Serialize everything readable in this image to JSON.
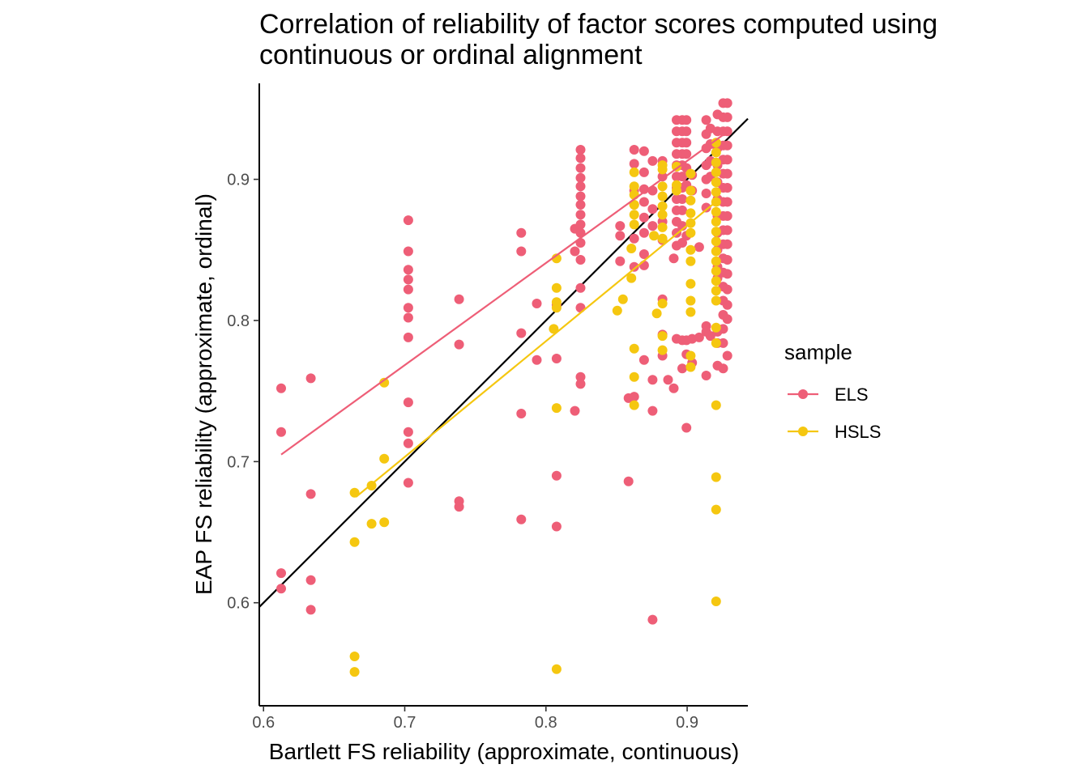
{
  "chart_data": {
    "type": "scatter",
    "title_lines": [
      "Correlation of reliability of factor scores computed using",
      "continuous or ordinal alignment"
    ],
    "xlabel": "Bartlett FS reliability (approximate, continuous)",
    "ylabel": "EAP FS reliability (approximate, ordinal)",
    "xlim": [
      0.597,
      0.943
    ],
    "ylim": [
      0.527,
      0.968
    ],
    "x_ticks": [
      0.6,
      0.7,
      0.8,
      0.9
    ],
    "x_tick_labels": [
      "0.6",
      "0.7",
      "0.8",
      "0.9"
    ],
    "y_ticks": [
      0.6,
      0.7,
      0.8,
      0.9
    ],
    "y_tick_labels": [
      "0.6",
      "0.7",
      "0.8",
      "0.9"
    ],
    "grid": false,
    "legend": {
      "title": "sample",
      "position": "right"
    },
    "reference_line": {
      "type": "identity",
      "color": "#000000"
    },
    "series": [
      {
        "name": "ELS",
        "color": "#EE5E77",
        "trend": [
          [
            0.6125,
            0.705
          ],
          [
            0.9275,
            0.933
          ]
        ],
        "points": [
          [
            0.6125,
            0.752
          ],
          [
            0.6125,
            0.721
          ],
          [
            0.6125,
            0.621
          ],
          [
            0.6125,
            0.61
          ],
          [
            0.6335,
            0.759
          ],
          [
            0.6335,
            0.677
          ],
          [
            0.6335,
            0.616
          ],
          [
            0.6335,
            0.595
          ],
          [
            0.7025,
            0.871
          ],
          [
            0.7025,
            0.849
          ],
          [
            0.7025,
            0.836
          ],
          [
            0.7025,
            0.829
          ],
          [
            0.7025,
            0.822
          ],
          [
            0.7025,
            0.809
          ],
          [
            0.7025,
            0.802
          ],
          [
            0.7025,
            0.788
          ],
          [
            0.7025,
            0.742
          ],
          [
            0.7025,
            0.721
          ],
          [
            0.7025,
            0.713
          ],
          [
            0.7025,
            0.685
          ],
          [
            0.7385,
            0.815
          ],
          [
            0.7385,
            0.783
          ],
          [
            0.7385,
            0.672
          ],
          [
            0.7385,
            0.668
          ],
          [
            0.7825,
            0.862
          ],
          [
            0.7825,
            0.849
          ],
          [
            0.7825,
            0.791
          ],
          [
            0.7825,
            0.734
          ],
          [
            0.7825,
            0.659
          ],
          [
            0.7935,
            0.812
          ],
          [
            0.7935,
            0.772
          ],
          [
            0.8075,
            0.811
          ],
          [
            0.8075,
            0.773
          ],
          [
            0.8075,
            0.69
          ],
          [
            0.8075,
            0.654
          ],
          [
            0.8205,
            0.865
          ],
          [
            0.8205,
            0.849
          ],
          [
            0.8205,
            0.736
          ],
          [
            0.8245,
            0.921
          ],
          [
            0.8245,
            0.915
          ],
          [
            0.8245,
            0.908
          ],
          [
            0.8245,
            0.901
          ],
          [
            0.8245,
            0.895
          ],
          [
            0.8245,
            0.888
          ],
          [
            0.8245,
            0.882
          ],
          [
            0.8245,
            0.875
          ],
          [
            0.8245,
            0.868
          ],
          [
            0.8245,
            0.862
          ],
          [
            0.8245,
            0.855
          ],
          [
            0.8245,
            0.843
          ],
          [
            0.8245,
            0.823
          ],
          [
            0.8245,
            0.809
          ],
          [
            0.8245,
            0.76
          ],
          [
            0.8245,
            0.755
          ],
          [
            0.8525,
            0.867
          ],
          [
            0.8525,
            0.86
          ],
          [
            0.8525,
            0.842
          ],
          [
            0.8585,
            0.745
          ],
          [
            0.8585,
            0.686
          ],
          [
            0.8625,
            0.921
          ],
          [
            0.8625,
            0.911
          ],
          [
            0.8625,
            0.892
          ],
          [
            0.8625,
            0.882
          ],
          [
            0.8625,
            0.858
          ],
          [
            0.8625,
            0.838
          ],
          [
            0.8625,
            0.746
          ],
          [
            0.8695,
            0.92
          ],
          [
            0.8695,
            0.905
          ],
          [
            0.8695,
            0.893
          ],
          [
            0.8695,
            0.884
          ],
          [
            0.8695,
            0.873
          ],
          [
            0.8695,
            0.862
          ],
          [
            0.8695,
            0.847
          ],
          [
            0.8695,
            0.839
          ],
          [
            0.8695,
            0.772
          ],
          [
            0.8755,
            0.913
          ],
          [
            0.8755,
            0.892
          ],
          [
            0.8755,
            0.879
          ],
          [
            0.8755,
            0.867
          ],
          [
            0.8755,
            0.758
          ],
          [
            0.8755,
            0.736
          ],
          [
            0.8755,
            0.588
          ],
          [
            0.8825,
            0.913
          ],
          [
            0.8825,
            0.902
          ],
          [
            0.8825,
            0.87
          ],
          [
            0.8825,
            0.857
          ],
          [
            0.8825,
            0.815
          ],
          [
            0.8825,
            0.79
          ],
          [
            0.8825,
            0.775
          ],
          [
            0.8865,
            0.758
          ],
          [
            0.8905,
            0.844
          ],
          [
            0.8905,
            0.752
          ],
          [
            0.8925,
            0.942
          ],
          [
            0.8925,
            0.934
          ],
          [
            0.8925,
            0.926
          ],
          [
            0.8925,
            0.918
          ],
          [
            0.8925,
            0.91
          ],
          [
            0.8925,
            0.902
          ],
          [
            0.8925,
            0.894
          ],
          [
            0.8925,
            0.886
          ],
          [
            0.8925,
            0.878
          ],
          [
            0.8925,
            0.87
          ],
          [
            0.8925,
            0.862
          ],
          [
            0.8925,
            0.853
          ],
          [
            0.8925,
            0.787
          ],
          [
            0.8965,
            0.942
          ],
          [
            0.8965,
            0.934
          ],
          [
            0.8965,
            0.926
          ],
          [
            0.8965,
            0.918
          ],
          [
            0.8965,
            0.91
          ],
          [
            0.8965,
            0.902
          ],
          [
            0.8965,
            0.894
          ],
          [
            0.8965,
            0.886
          ],
          [
            0.8965,
            0.878
          ],
          [
            0.8965,
            0.867
          ],
          [
            0.8965,
            0.855
          ],
          [
            0.8965,
            0.786
          ],
          [
            0.8965,
            0.766
          ],
          [
            0.8995,
            0.942
          ],
          [
            0.8995,
            0.934
          ],
          [
            0.8995,
            0.926
          ],
          [
            0.8995,
            0.918
          ],
          [
            0.8995,
            0.908
          ],
          [
            0.8995,
            0.896
          ],
          [
            0.8995,
            0.86
          ],
          [
            0.8995,
            0.786
          ],
          [
            0.8995,
            0.776
          ],
          [
            0.8995,
            0.724
          ],
          [
            0.9035,
            0.903
          ],
          [
            0.9035,
            0.892
          ],
          [
            0.9035,
            0.787
          ],
          [
            0.9035,
            0.77
          ],
          [
            0.9085,
            0.852
          ],
          [
            0.9085,
            0.788
          ],
          [
            0.9135,
            0.942
          ],
          [
            0.9135,
            0.932
          ],
          [
            0.9135,
            0.922
          ],
          [
            0.9135,
            0.91
          ],
          [
            0.9135,
            0.9
          ],
          [
            0.9135,
            0.89
          ],
          [
            0.9135,
            0.88
          ],
          [
            0.9135,
            0.796
          ],
          [
            0.9135,
            0.792
          ],
          [
            0.9135,
            0.761
          ],
          [
            0.9165,
            0.936
          ],
          [
            0.9165,
            0.925
          ],
          [
            0.9165,
            0.913
          ],
          [
            0.9165,
            0.902
          ],
          [
            0.9165,
            0.789
          ],
          [
            0.9215,
            0.946
          ],
          [
            0.9215,
            0.934
          ],
          [
            0.9215,
            0.922
          ],
          [
            0.9215,
            0.91
          ],
          [
            0.9215,
            0.898
          ],
          [
            0.9215,
            0.886
          ],
          [
            0.9215,
            0.874
          ],
          [
            0.9215,
            0.862
          ],
          [
            0.9215,
            0.85
          ],
          [
            0.9215,
            0.838
          ],
          [
            0.9215,
            0.83
          ],
          [
            0.9215,
            0.792
          ],
          [
            0.9215,
            0.784
          ],
          [
            0.9215,
            0.768
          ],
          [
            0.9255,
            0.954
          ],
          [
            0.9255,
            0.944
          ],
          [
            0.9255,
            0.934
          ],
          [
            0.9255,
            0.924
          ],
          [
            0.9255,
            0.914
          ],
          [
            0.9255,
            0.904
          ],
          [
            0.9255,
            0.894
          ],
          [
            0.9255,
            0.884
          ],
          [
            0.9255,
            0.874
          ],
          [
            0.9255,
            0.864
          ],
          [
            0.9255,
            0.854
          ],
          [
            0.9255,
            0.844
          ],
          [
            0.9255,
            0.834
          ],
          [
            0.9255,
            0.824
          ],
          [
            0.9255,
            0.814
          ],
          [
            0.9255,
            0.804
          ],
          [
            0.9255,
            0.794
          ],
          [
            0.9255,
            0.784
          ],
          [
            0.9255,
            0.766
          ],
          [
            0.9285,
            0.954
          ],
          [
            0.9285,
            0.944
          ],
          [
            0.9285,
            0.934
          ],
          [
            0.9285,
            0.924
          ],
          [
            0.9285,
            0.914
          ],
          [
            0.9285,
            0.904
          ],
          [
            0.9285,
            0.894
          ],
          [
            0.9285,
            0.884
          ],
          [
            0.9285,
            0.874
          ],
          [
            0.9285,
            0.864
          ],
          [
            0.9285,
            0.854
          ],
          [
            0.9285,
            0.843
          ],
          [
            0.9285,
            0.833
          ],
          [
            0.9285,
            0.822
          ],
          [
            0.9285,
            0.811
          ],
          [
            0.9285,
            0.801
          ],
          [
            0.9285,
            0.775
          ]
        ]
      },
      {
        "name": "HSLS",
        "color": "#F5C710",
        "trend": [
          [
            0.6655,
            0.675
          ],
          [
            0.9215,
            0.885
          ]
        ],
        "points": [
          [
            0.6645,
            0.678
          ],
          [
            0.6645,
            0.643
          ],
          [
            0.6645,
            0.562
          ],
          [
            0.6645,
            0.551
          ],
          [
            0.6765,
            0.683
          ],
          [
            0.6765,
            0.656
          ],
          [
            0.6855,
            0.756
          ],
          [
            0.6855,
            0.702
          ],
          [
            0.6855,
            0.657
          ],
          [
            0.8055,
            0.794
          ],
          [
            0.8075,
            0.844
          ],
          [
            0.8075,
            0.823
          ],
          [
            0.8075,
            0.813
          ],
          [
            0.8075,
            0.809
          ],
          [
            0.8075,
            0.738
          ],
          [
            0.8075,
            0.553
          ],
          [
            0.8505,
            0.807
          ],
          [
            0.8545,
            0.815
          ],
          [
            0.8605,
            0.851
          ],
          [
            0.8605,
            0.83
          ],
          [
            0.8625,
            0.905
          ],
          [
            0.8625,
            0.895
          ],
          [
            0.8625,
            0.889
          ],
          [
            0.8625,
            0.882
          ],
          [
            0.8625,
            0.875
          ],
          [
            0.8625,
            0.868
          ],
          [
            0.8625,
            0.78
          ],
          [
            0.8625,
            0.76
          ],
          [
            0.8625,
            0.74
          ],
          [
            0.8765,
            0.86
          ],
          [
            0.8785,
            0.805
          ],
          [
            0.8825,
            0.91
          ],
          [
            0.8825,
            0.907
          ],
          [
            0.8825,
            0.895
          ],
          [
            0.8825,
            0.888
          ],
          [
            0.8825,
            0.881
          ],
          [
            0.8825,
            0.875
          ],
          [
            0.8825,
            0.866
          ],
          [
            0.8825,
            0.858
          ],
          [
            0.8825,
            0.812
          ],
          [
            0.8825,
            0.789
          ],
          [
            0.8825,
            0.779
          ],
          [
            0.8925,
            0.909
          ],
          [
            0.8925,
            0.896
          ],
          [
            0.8925,
            0.892
          ],
          [
            0.9025,
            0.904
          ],
          [
            0.9025,
            0.892
          ],
          [
            0.9025,
            0.885
          ],
          [
            0.9025,
            0.876
          ],
          [
            0.9025,
            0.869
          ],
          [
            0.9025,
            0.862
          ],
          [
            0.9025,
            0.85
          ],
          [
            0.9025,
            0.842
          ],
          [
            0.9025,
            0.826
          ],
          [
            0.9025,
            0.814
          ],
          [
            0.9025,
            0.806
          ],
          [
            0.9025,
            0.775
          ],
          [
            0.9025,
            0.767
          ],
          [
            0.9205,
            0.926
          ],
          [
            0.9205,
            0.919
          ],
          [
            0.9205,
            0.912
          ],
          [
            0.9205,
            0.905
          ],
          [
            0.9205,
            0.898
          ],
          [
            0.9205,
            0.891
          ],
          [
            0.9205,
            0.884
          ],
          [
            0.9205,
            0.877
          ],
          [
            0.9205,
            0.87
          ],
          [
            0.9205,
            0.863
          ],
          [
            0.9205,
            0.856
          ],
          [
            0.9205,
            0.849
          ],
          [
            0.9205,
            0.842
          ],
          [
            0.9205,
            0.835
          ],
          [
            0.9205,
            0.828
          ],
          [
            0.9205,
            0.821
          ],
          [
            0.9205,
            0.814
          ],
          [
            0.9205,
            0.795
          ],
          [
            0.9205,
            0.784
          ],
          [
            0.9205,
            0.74
          ],
          [
            0.9205,
            0.689
          ],
          [
            0.9205,
            0.666
          ],
          [
            0.9205,
            0.601
          ]
        ]
      }
    ]
  }
}
